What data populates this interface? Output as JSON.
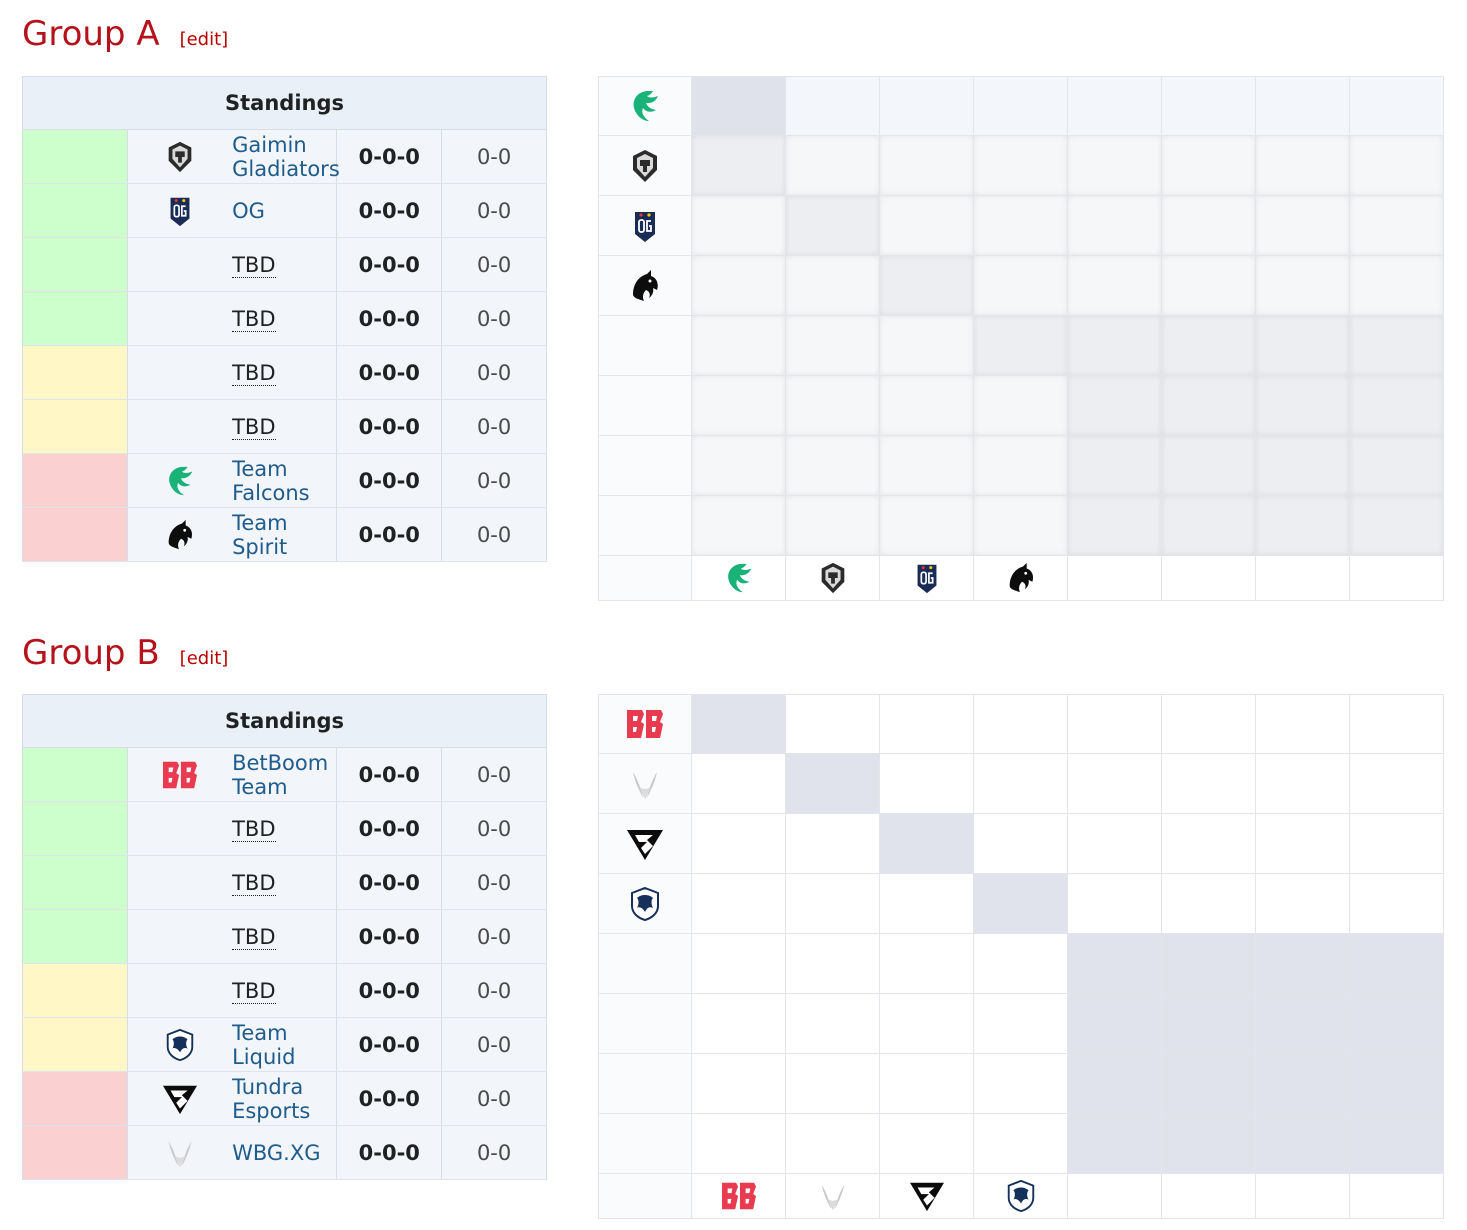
{
  "groups": [
    {
      "title": "Group A",
      "edit": "edit",
      "standings_header": "Standings",
      "rows": [
        {
          "status": "g",
          "logo": "gladiators-logo",
          "name": "Gaimin Gladiators",
          "tbd": false,
          "record": "0-0-0",
          "games": "0-0"
        },
        {
          "status": "g",
          "logo": "og-logo",
          "name": "OG",
          "tbd": false,
          "record": "0-0-0",
          "games": "0-0"
        },
        {
          "status": "g",
          "logo": "",
          "name": "TBD",
          "tbd": true,
          "record": "0-0-0",
          "games": "0-0"
        },
        {
          "status": "g",
          "logo": "",
          "name": "TBD",
          "tbd": true,
          "record": "0-0-0",
          "games": "0-0"
        },
        {
          "status": "y",
          "logo": "",
          "name": "TBD",
          "tbd": true,
          "record": "0-0-0",
          "games": "0-0"
        },
        {
          "status": "y",
          "logo": "",
          "name": "TBD",
          "tbd": true,
          "record": "0-0-0",
          "games": "0-0"
        },
        {
          "status": "r",
          "logo": "falcons-logo",
          "name": "Team Falcons",
          "tbd": false,
          "record": "0-0-0",
          "games": "0-0"
        },
        {
          "status": "r",
          "logo": "spirit-logo",
          "name": "Team Spirit",
          "tbd": false,
          "record": "0-0-0",
          "games": "0-0"
        }
      ],
      "cross_row_logos": [
        "falcons-logo",
        "gladiators-logo",
        "og-logo",
        "spirit-logo",
        "",
        "",
        "",
        ""
      ],
      "cross_col_logos": [
        "falcons-logo",
        "gladiators-logo",
        "og-logo",
        "spirit-logo",
        "",
        "",
        "",
        ""
      ]
    },
    {
      "title": "Group B",
      "edit": "edit",
      "standings_header": "Standings",
      "rows": [
        {
          "status": "g",
          "logo": "betboom-logo",
          "name": "BetBoom Team",
          "tbd": false,
          "record": "0-0-0",
          "games": "0-0"
        },
        {
          "status": "g",
          "logo": "",
          "name": "TBD",
          "tbd": true,
          "record": "0-0-0",
          "games": "0-0"
        },
        {
          "status": "g",
          "logo": "",
          "name": "TBD",
          "tbd": true,
          "record": "0-0-0",
          "games": "0-0"
        },
        {
          "status": "g",
          "logo": "",
          "name": "TBD",
          "tbd": true,
          "record": "0-0-0",
          "games": "0-0"
        },
        {
          "status": "y",
          "logo": "",
          "name": "TBD",
          "tbd": true,
          "record": "0-0-0",
          "games": "0-0"
        },
        {
          "status": "y",
          "logo": "liquid-logo",
          "name": "Team Liquid",
          "tbd": false,
          "record": "0-0-0",
          "games": "0-0"
        },
        {
          "status": "r",
          "logo": "tundra-logo",
          "name": "Tundra Esports",
          "tbd": false,
          "record": "0-0-0",
          "games": "0-0"
        },
        {
          "status": "r",
          "logo": "xg-logo",
          "name": "WBG.XG",
          "tbd": false,
          "record": "0-0-0",
          "games": "0-0"
        }
      ],
      "cross_row_logos": [
        "betboom-logo",
        "xg-logo",
        "tundra-logo",
        "liquid-logo",
        "",
        "",
        "",
        ""
      ],
      "cross_col_logos": [
        "betboom-logo",
        "xg-logo",
        "tundra-logo",
        "liquid-logo",
        "",
        "",
        "",
        ""
      ]
    }
  ]
}
